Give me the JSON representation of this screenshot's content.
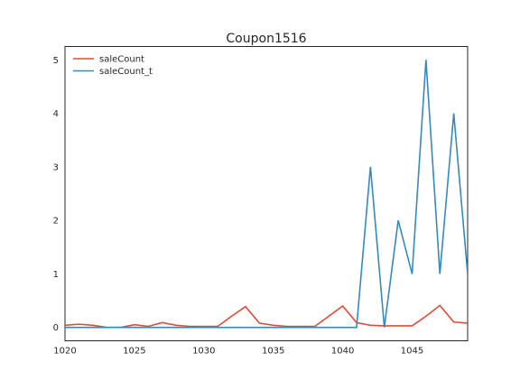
{
  "chart_data": {
    "type": "line",
    "title": "Coupon1516",
    "xlabel": "",
    "ylabel": "",
    "xlim": [
      1020,
      1049
    ],
    "ylim": [
      -0.25,
      5.25
    ],
    "xticks": [
      1020,
      1025,
      1030,
      1035,
      1040,
      1045
    ],
    "yticks": [
      0,
      1,
      2,
      3,
      4,
      5
    ],
    "grid": false,
    "legend_position": "top-left",
    "x": [
      1020,
      1021,
      1022,
      1023,
      1024,
      1025,
      1026,
      1027,
      1028,
      1029,
      1030,
      1031,
      1032,
      1033,
      1034,
      1035,
      1036,
      1037,
      1038,
      1039,
      1040,
      1041,
      1042,
      1043,
      1044,
      1045,
      1046,
      1047,
      1048,
      1049
    ],
    "series": [
      {
        "name": "saleCount",
        "color": "#E24A33",
        "values": [
          0.04,
          0.06,
          0.04,
          0.0,
          0.0,
          0.05,
          0.02,
          0.09,
          0.04,
          0.02,
          0.02,
          0.02,
          0.21,
          0.39,
          0.08,
          0.04,
          0.02,
          0.02,
          0.02,
          0.21,
          0.4,
          0.09,
          0.04,
          0.03,
          0.03,
          0.03,
          0.21,
          0.41,
          0.1,
          0.08
        ]
      },
      {
        "name": "saleCount_t",
        "color": "#348ABD",
        "values": [
          0,
          0,
          0,
          0,
          0,
          0,
          0,
          0,
          0,
          0,
          0,
          0,
          0,
          0,
          0,
          0,
          0,
          0,
          0,
          0,
          0,
          0,
          3,
          0,
          2,
          1,
          5,
          1,
          4,
          1
        ]
      }
    ]
  }
}
